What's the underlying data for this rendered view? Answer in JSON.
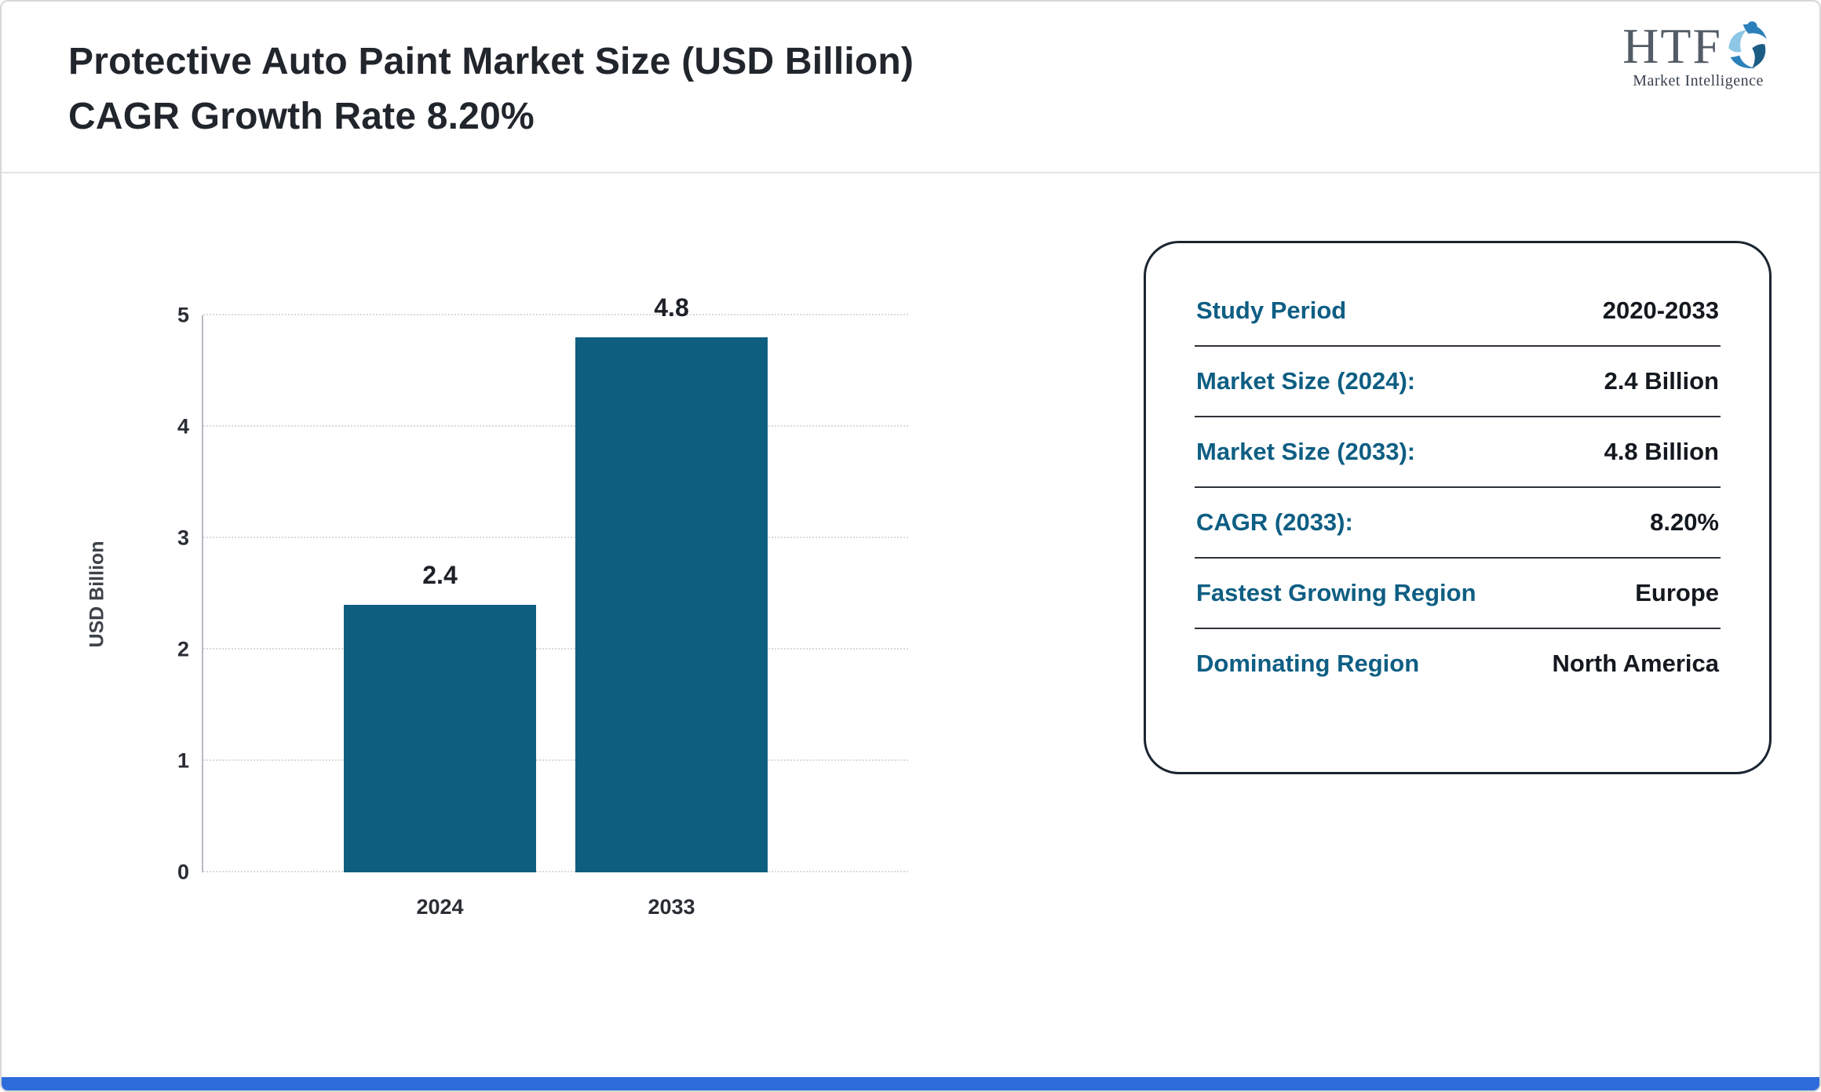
{
  "header": {
    "title_line1": "Protective Auto Paint Market Size (USD Billion)",
    "title_line2": "CAGR Growth Rate 8.20%",
    "logo": {
      "text": "HTF",
      "subtext": "Market Intelligence"
    }
  },
  "chart_data": {
    "type": "bar",
    "title": "Protective Auto Paint Market Size (USD Billion) CAGR Growth Rate 8.20%",
    "categories": [
      "2024",
      "2033"
    ],
    "values": [
      2.4,
      4.8
    ],
    "value_labels": [
      "2.4",
      "4.8"
    ],
    "xlabel": "",
    "ylabel": "USD Billion",
    "ylim": [
      0,
      5
    ],
    "yticks": [
      0,
      1,
      2,
      3,
      4,
      5
    ],
    "grid": true,
    "legend": false,
    "bar_color": "#0e5e7f"
  },
  "info_card": {
    "rows": [
      {
        "label": "Study Period",
        "value": "2020-2033"
      },
      {
        "label": "Market Size (2024):",
        "value": "2.4 Billion"
      },
      {
        "label": "Market Size (2033):",
        "value": "4.8 Billion"
      },
      {
        "label": "CAGR (2033):",
        "value": "8.20%"
      },
      {
        "label": "Fastest Growing Region",
        "value": "Europe"
      },
      {
        "label": "Dominating Region",
        "value": "North America"
      }
    ]
  },
  "colors": {
    "bar": "#0e5e7f",
    "card_label": "#0e5e83",
    "card_value": "#14181f",
    "bottom_strip": "#2e6cdb",
    "title_text": "#21252c"
  }
}
